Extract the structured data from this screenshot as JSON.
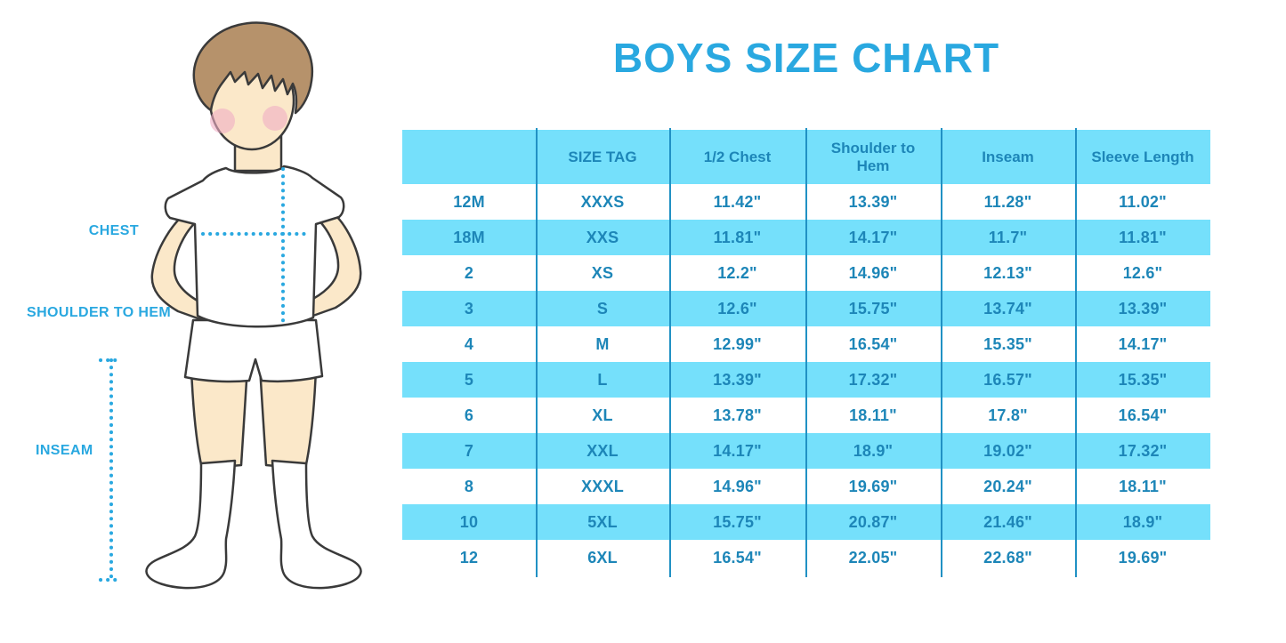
{
  "title": "BOYS SIZE CHART",
  "measurement_labels": {
    "chest": "CHEST",
    "shoulder_to_hem": "SHOULDER TO HEM",
    "inseam": "INSEAM"
  },
  "colors": {
    "accent": "#29a8e0",
    "table-text": "#1d86b8",
    "row-cyan": "#75e0fb",
    "divider": "#2191c4",
    "skin": "#fbe8c9",
    "hair": "#b6926b",
    "cheek": "#f0aec5",
    "outline": "#3a3a3a"
  },
  "chart_data": {
    "type": "table",
    "title": "BOYS SIZE CHART",
    "columns": [
      "",
      "SIZE TAG",
      "1/2 Chest",
      "Shoulder to Hem",
      "Inseam",
      "Sleeve Length"
    ],
    "rows": [
      [
        "12M",
        "XXXS",
        "11.42\"",
        "13.39\"",
        "11.28\"",
        "11.02\""
      ],
      [
        "18M",
        "XXS",
        "11.81\"",
        "14.17\"",
        "11.7\"",
        "11.81\""
      ],
      [
        "2",
        "XS",
        "12.2\"",
        "14.96\"",
        "12.13\"",
        "12.6\""
      ],
      [
        "3",
        "S",
        "12.6\"",
        "15.75\"",
        "13.74\"",
        "13.39\""
      ],
      [
        "4",
        "M",
        "12.99\"",
        "16.54\"",
        "15.35\"",
        "14.17\""
      ],
      [
        "5",
        "L",
        "13.39\"",
        "17.32\"",
        "16.57\"",
        "15.35\""
      ],
      [
        "6",
        "XL",
        "13.78\"",
        "18.11\"",
        "17.8\"",
        "16.54\""
      ],
      [
        "7",
        "XXL",
        "14.17\"",
        "18.9\"",
        "19.02\"",
        "17.32\""
      ],
      [
        "8",
        "XXXL",
        "14.96\"",
        "19.69\"",
        "20.24\"",
        "18.11\""
      ],
      [
        "10",
        "5XL",
        "15.75\"",
        "20.87\"",
        "21.46\"",
        "18.9\""
      ],
      [
        "12",
        "6XL",
        "16.54\"",
        "22.05\"",
        "22.68\"",
        "19.69\""
      ]
    ],
    "layout": {
      "stripes": "alternating white/cyan rows, cyan header",
      "borders": "internal vertical dividers only"
    }
  }
}
